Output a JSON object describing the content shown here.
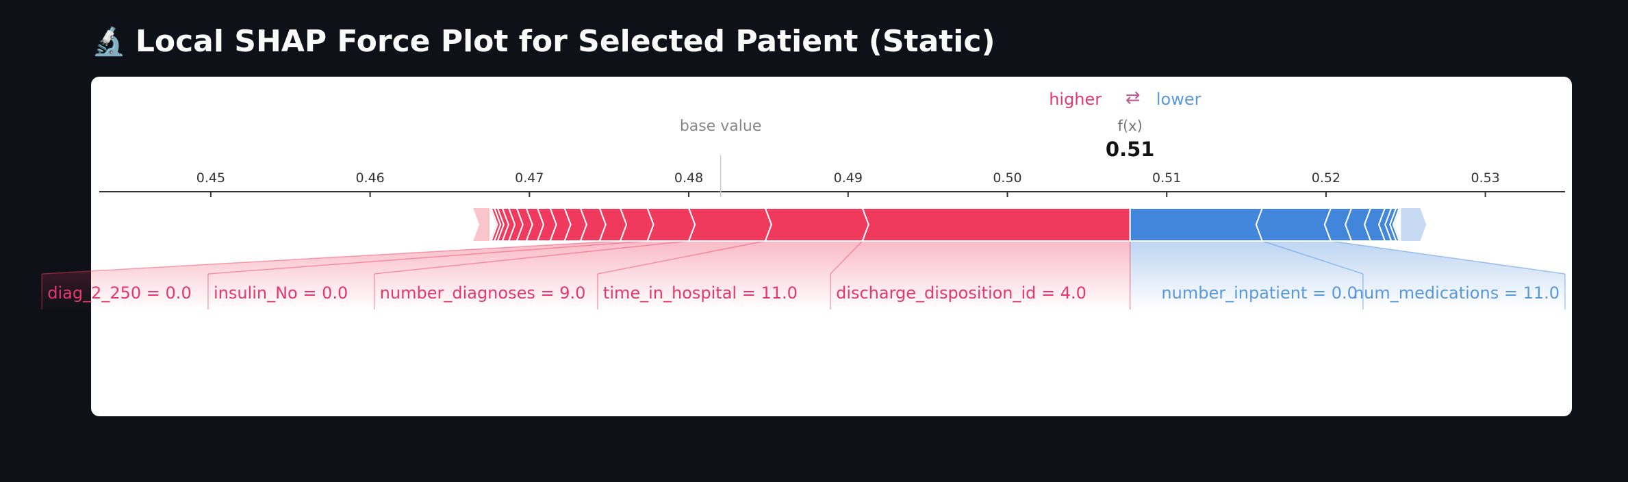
{
  "page": {
    "title": "Local SHAP Force Plot for Selected Patient (Static)",
    "title_icon": "microscope-icon"
  },
  "chart_data": {
    "type": "force",
    "xlim": [
      0.443,
      0.535
    ],
    "ticks": [
      0.45,
      0.46,
      0.47,
      0.48,
      0.49,
      0.5,
      0.51,
      0.52,
      0.53
    ],
    "tick_labels": [
      "0.45",
      "0.46",
      "0.47",
      "0.48",
      "0.49",
      "0.50",
      "0.51",
      "0.52",
      "0.53"
    ],
    "base_value": 0.482,
    "base_value_label": "base value",
    "fx": 0.5077,
    "fx_label": "f(x)",
    "fx_value_label": "0.51",
    "legend": {
      "higher": "higher",
      "arrow": "⇄",
      "lower": "lower"
    },
    "colors": {
      "positive": "#ef3a5d",
      "negative": "#4286dc",
      "positive_text": "#e5386e",
      "negative_text": "#5a98dc"
    },
    "positive_features": [
      {
        "label": "discharge_disposition_id = 4.0",
        "value": 0.0168
      },
      {
        "label": "time_in_hospital = 11.0",
        "value": 0.0061
      },
      {
        "label": "number_diagnoses = 9.0",
        "value": 0.0048
      },
      {
        "label": "insulin_No = 0.0",
        "value": 0.0026
      },
      {
        "label": "diag_2_250 = 0.0",
        "value": 0.0017
      },
      {
        "label": "",
        "value": 0.0013
      },
      {
        "label": "",
        "value": 0.0012
      },
      {
        "label": "",
        "value": 0.001
      },
      {
        "label": "",
        "value": 0.0009
      },
      {
        "label": "",
        "value": 0.0008
      },
      {
        "label": "",
        "value": 0.0007
      },
      {
        "label": "",
        "value": 0.0006
      },
      {
        "label": "",
        "value": 0.0005
      },
      {
        "label": "",
        "value": 0.0004
      },
      {
        "label": "",
        "value": 0.0003
      },
      {
        "label": "",
        "value": 0.0002
      },
      {
        "label": "",
        "value": 0.0002
      },
      {
        "label": "",
        "value": 0.0001
      }
    ],
    "negative_features": [
      {
        "label": "number_inpatient = 0.0",
        "value": 0.0083
      },
      {
        "label": "num_medications = 11.0",
        "value": 0.0043
      },
      {
        "label": "",
        "value": 0.0013
      },
      {
        "label": "",
        "value": 0.0012
      },
      {
        "label": "",
        "value": 0.0009
      },
      {
        "label": "",
        "value": 0.0004
      },
      {
        "label": "",
        "value": 0.0003
      },
      {
        "label": "",
        "value": 0.0002
      },
      {
        "label": "",
        "value": 0.0001
      }
    ]
  }
}
